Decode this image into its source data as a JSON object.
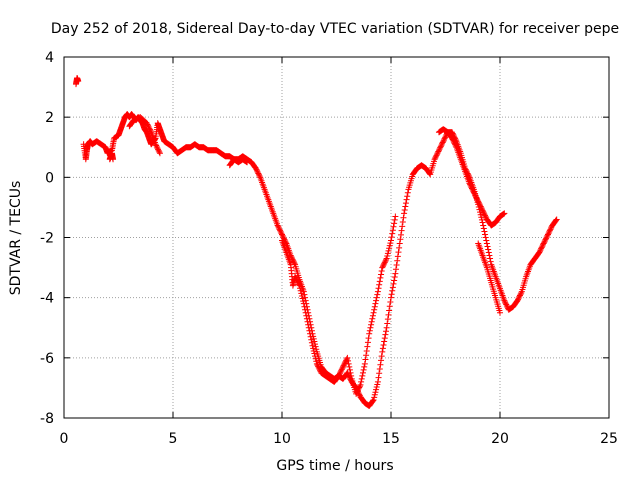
{
  "chart_data": {
    "type": "scatter",
    "title": "Day 252 of 2018, Sidereal Day-to-day VTEC variation (SDTVAR) for receiver pepe",
    "xlabel": "GPS time / hours",
    "ylabel": "SDTVAR / TECUs",
    "xlim": [
      0,
      25
    ],
    "ylim": [
      -8,
      4
    ],
    "xticks": [
      0,
      5,
      10,
      15,
      20,
      25
    ],
    "yticks": [
      -8,
      -6,
      -4,
      -2,
      0,
      2,
      4
    ],
    "grid": true,
    "marker": "+",
    "series": [
      {
        "name": "SDTVAR",
        "color": "#ff0000",
        "segments": [
          {
            "x": [
              0.55,
              0.6,
              0.65
            ],
            "y": [
              3.1,
              3.3,
              3.2
            ]
          },
          {
            "x": [
              0.9,
              1.0,
              1.05,
              1.1,
              1.2,
              1.3,
              1.5,
              1.7,
              1.9,
              2.0,
              2.2,
              2.3,
              2.5,
              2.6,
              2.7,
              2.8,
              2.9,
              3.0,
              3.1,
              3.2,
              3.3,
              3.4,
              3.5,
              3.6,
              3.7,
              3.8,
              3.9,
              4.0,
              4.1,
              4.2,
              4.3,
              4.4,
              4.5,
              4.6,
              4.8,
              5.0,
              5.2,
              5.4,
              5.6,
              5.8,
              6.0,
              6.2,
              6.4,
              6.6,
              6.8,
              7.0,
              7.2,
              7.4,
              7.6,
              7.8,
              8.0,
              8.2,
              8.4,
              8.6,
              8.8,
              9.0,
              9.2,
              9.4,
              9.6,
              9.8,
              10.0,
              10.2,
              10.4,
              10.6,
              10.8,
              11.0,
              11.2,
              11.4,
              11.6,
              11.8,
              12.0,
              12.2,
              12.4,
              12.6,
              12.8,
              13.0,
              13.2,
              13.4,
              13.6,
              13.8,
              14.0,
              14.2,
              14.4,
              14.6,
              14.8,
              15.0,
              15.2,
              15.4,
              15.6,
              15.8,
              16.0,
              16.2,
              16.4,
              16.6,
              16.8,
              17.0,
              17.2,
              17.4,
              17.6,
              17.8,
              18.0,
              18.2,
              18.4,
              18.6,
              18.8,
              19.0,
              19.2,
              19.4,
              19.6,
              19.8,
              20.0,
              20.2,
              20.4,
              20.6,
              20.8,
              21.0,
              21.2,
              21.4,
              21.6,
              21.8,
              22.0,
              22.2,
              22.4,
              22.6
            ],
            "y": [
              1.1,
              0.6,
              0.9,
              1.1,
              1.2,
              1.1,
              1.2,
              1.1,
              1.0,
              0.8,
              0.9,
              1.3,
              1.4,
              1.6,
              1.8,
              2.0,
              2.1,
              2.0,
              2.1,
              2.0,
              1.9,
              2.0,
              1.9,
              1.8,
              1.6,
              1.5,
              1.3,
              1.1,
              1.2,
              1.3,
              1.8,
              1.6,
              1.4,
              1.2,
              1.1,
              1.0,
              0.8,
              0.9,
              1.0,
              1.0,
              1.1,
              1.0,
              1.0,
              0.9,
              0.9,
              0.9,
              0.8,
              0.7,
              0.7,
              0.6,
              0.6,
              0.7,
              0.6,
              0.5,
              0.3,
              0.0,
              -0.4,
              -0.8,
              -1.2,
              -1.6,
              -1.9,
              -2.2,
              -2.6,
              -2.9,
              -3.4,
              -3.8,
              -4.5,
              -5.2,
              -5.8,
              -6.3,
              -6.5,
              -6.6,
              -6.7,
              -6.6,
              -6.7,
              -6.5,
              -6.8,
              -7.0,
              -7.3,
              -7.5,
              -7.6,
              -7.4,
              -6.8,
              -5.8,
              -5.0,
              -4.0,
              -3.2,
              -2.2,
              -1.2,
              -0.4,
              0.1,
              0.3,
              0.4,
              0.3,
              0.1,
              0.6,
              0.9,
              1.2,
              1.5,
              1.5,
              1.2,
              0.8,
              0.3,
              0.0,
              -0.4,
              -0.9,
              -1.5,
              -2.2,
              -2.9,
              -3.3,
              -3.7,
              -4.1,
              -4.4,
              -4.3,
              -4.1,
              -3.8,
              -3.3,
              -2.9,
              -2.7,
              -2.5,
              -2.2,
              -1.9,
              -1.6,
              -1.4
            ]
          },
          {
            "x": [
              2.1,
              2.15,
              2.2,
              2.25
            ],
            "y": [
              0.6,
              0.7,
              0.8,
              0.6
            ]
          },
          {
            "x": [
              3.0,
              3.2,
              3.5,
              3.8,
              4.0,
              4.2,
              4.4
            ],
            "y": [
              1.7,
              1.9,
              2.0,
              1.8,
              1.5,
              1.1,
              0.8
            ]
          },
          {
            "x": [
              7.6,
              7.8,
              8.0,
              8.2,
              8.4
            ],
            "y": [
              0.4,
              0.6,
              0.5,
              0.6,
              0.5
            ]
          },
          {
            "x": [
              10.0,
              10.2,
              10.4,
              10.5,
              10.6,
              10.8,
              11.0,
              11.2,
              11.4,
              11.6,
              11.8,
              12.0,
              12.2,
              12.4,
              12.6,
              12.8,
              13.0,
              13.2,
              13.4,
              13.6,
              13.8,
              14.0,
              14.2,
              14.4,
              14.6,
              14.8,
              15.0,
              15.2
            ],
            "y": [
              -2.1,
              -2.5,
              -2.9,
              -3.6,
              -3.3,
              -3.6,
              -4.2,
              -4.9,
              -5.6,
              -6.2,
              -6.5,
              -6.6,
              -6.7,
              -6.8,
              -6.6,
              -6.3,
              -6.0,
              -6.7,
              -7.2,
              -6.9,
              -6.2,
              -5.2,
              -4.5,
              -3.8,
              -3.0,
              -2.7,
              -2.1,
              -1.3
            ]
          },
          {
            "x": [
              17.2,
              17.4,
              17.6,
              17.8,
              18.0,
              18.2,
              18.4,
              18.6,
              18.8,
              19.0,
              19.2,
              19.4,
              19.6,
              19.8,
              20.0,
              20.2
            ],
            "y": [
              1.5,
              1.6,
              1.5,
              1.3,
              1.0,
              0.6,
              0.2,
              -0.2,
              -0.5,
              -0.8,
              -1.1,
              -1.4,
              -1.6,
              -1.5,
              -1.3,
              -1.2
            ]
          },
          {
            "x": [
              19.0,
              19.2,
              19.4,
              19.6,
              19.8,
              20.0
            ],
            "y": [
              -2.2,
              -2.6,
              -3.0,
              -3.5,
              -4.0,
              -4.5
            ]
          }
        ]
      }
    ]
  }
}
